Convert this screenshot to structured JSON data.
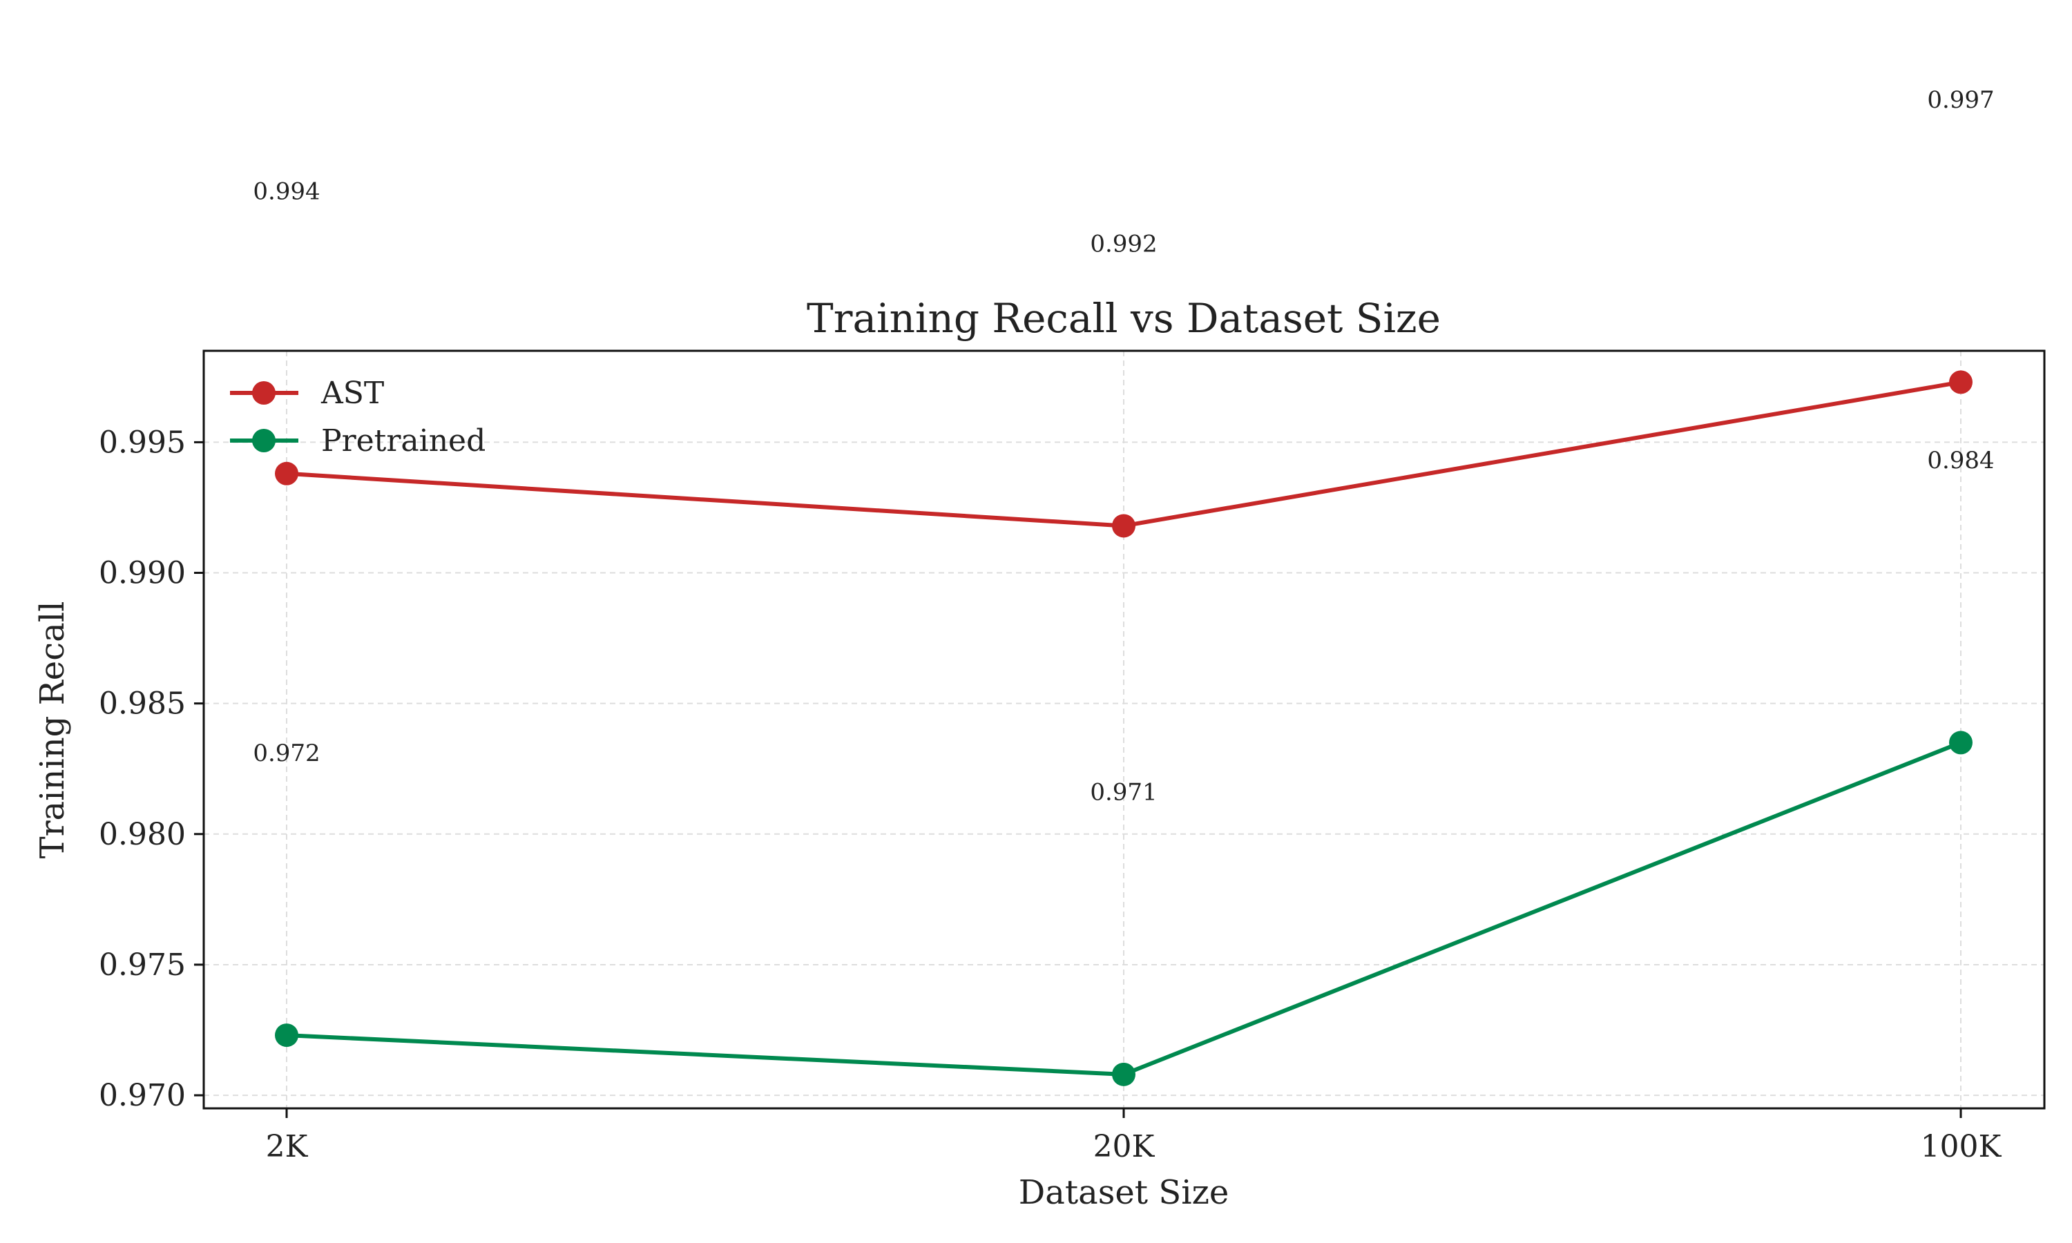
{
  "chart_data": {
    "type": "line",
    "title": "Training Recall vs Dataset Size",
    "xlabel": "Dataset Size",
    "ylabel": "Training Recall",
    "categories": [
      "2K",
      "20K",
      "100K"
    ],
    "yticks": [
      "0.970",
      "0.975",
      "0.980",
      "0.985",
      "0.990",
      "0.995"
    ],
    "ylim": [
      0.9695,
      0.9985
    ],
    "grid": true,
    "legend_position": "upper-left",
    "series": [
      {
        "name": "AST",
        "color": "#c62828",
        "values": [
          0.9938,
          0.9918,
          0.9973
        ],
        "labels": [
          "0.994",
          "0.992",
          "0.997"
        ]
      },
      {
        "name": "Pretrained",
        "color": "#00894f",
        "values": [
          0.9723,
          0.9708,
          0.9835
        ],
        "labels": [
          "0.972",
          "0.971",
          "0.984"
        ]
      }
    ]
  }
}
